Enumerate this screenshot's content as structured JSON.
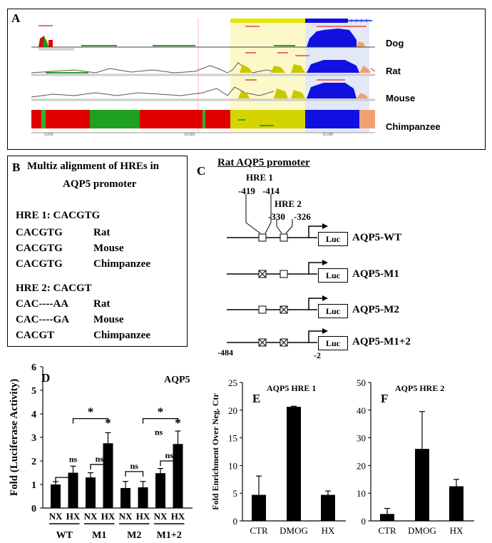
{
  "panelA": {
    "letter": "A",
    "species": [
      "Dog",
      "Rat",
      "Mouse",
      "Chimpanzee"
    ],
    "axis_ticks": [
      "5,000",
      "10,000",
      "15,000"
    ]
  },
  "panelB": {
    "letter": "B",
    "title_line1": "Multiz alignment of HREs in",
    "title_line2": "AQP5 promoter",
    "hre1_header": "HRE 1: CACGTG",
    "hre1_rows": [
      {
        "seq": "CACGTG",
        "species": "Rat"
      },
      {
        "seq": "CACGTG",
        "species": "Mouse"
      },
      {
        "seq": "CACGTG",
        "species": "Chimpanzee"
      }
    ],
    "hre2_header": "HRE 2: CACGT",
    "hre2_rows": [
      {
        "seq": "CAC----AA",
        "species": "Rat"
      },
      {
        "seq": "CAC----GA",
        "species": "Mouse"
      },
      {
        "seq": "CACGT",
        "species": "Chimpanzee"
      }
    ]
  },
  "panelC": {
    "letter": "C",
    "title": "Rat AQP5 promoter",
    "hre1_label": "HRE 1",
    "hre1_pos_a": "-419",
    "hre1_pos_b": "-414",
    "hre2_label": "HRE 2",
    "hre2_pos_a": "-330",
    "hre2_pos_b": "-326",
    "luc_label": "Luc",
    "constructs": [
      "AQP5-WT",
      "AQP5-M1",
      "AQP5-M2",
      "AQP5-M1+2"
    ],
    "start_pos": "-484",
    "end_pos": "-2"
  },
  "chart_data": [
    {
      "panel": "D",
      "type": "bar",
      "title": "AQP5",
      "ylabel": "Fold (Luciferase Activity)",
      "ylim": [
        0,
        6
      ],
      "yticks": [
        "0",
        "1",
        "2",
        "3",
        "4",
        "5",
        "6"
      ],
      "categories": [
        "NX",
        "HX",
        "NX",
        "HX",
        "NX",
        "HX",
        "NX",
        "HX"
      ],
      "groups": [
        "WT",
        "M1",
        "M2",
        "M1+2"
      ],
      "values": [
        1.0,
        1.5,
        1.3,
        2.75,
        0.85,
        0.88,
        1.48,
        2.72
      ],
      "errors": [
        0.12,
        0.28,
        0.2,
        0.45,
        0.28,
        0.25,
        0.2,
        0.55
      ],
      "annotations": [
        "ns",
        "ns",
        "ns",
        "ns",
        "ns",
        "*",
        "*",
        "*",
        "*"
      ]
    },
    {
      "panel": "E",
      "type": "bar",
      "title": "AQP5  HRE 1",
      "ylabel": "Fold Enrichment  Over Neg. Ctr",
      "ylim": [
        0,
        25
      ],
      "yticks": [
        "0",
        "5",
        "10",
        "15",
        "20",
        "25"
      ],
      "categories": [
        "CTR",
        "DMOG",
        "HX"
      ],
      "values": [
        4.7,
        20.6,
        4.7
      ],
      "errors": [
        3.4,
        0.1,
        0.7
      ]
    },
    {
      "panel": "F",
      "type": "bar",
      "title": "AQP5  HRE 2",
      "ylim": [
        0,
        50
      ],
      "yticks": [
        "0",
        "10",
        "20",
        "30",
        "40",
        "50"
      ],
      "categories": [
        "CTR",
        "DMOG",
        "HX"
      ],
      "values": [
        2.5,
        26,
        12.5
      ],
      "errors": [
        2.0,
        13.5,
        2.5
      ]
    }
  ]
}
